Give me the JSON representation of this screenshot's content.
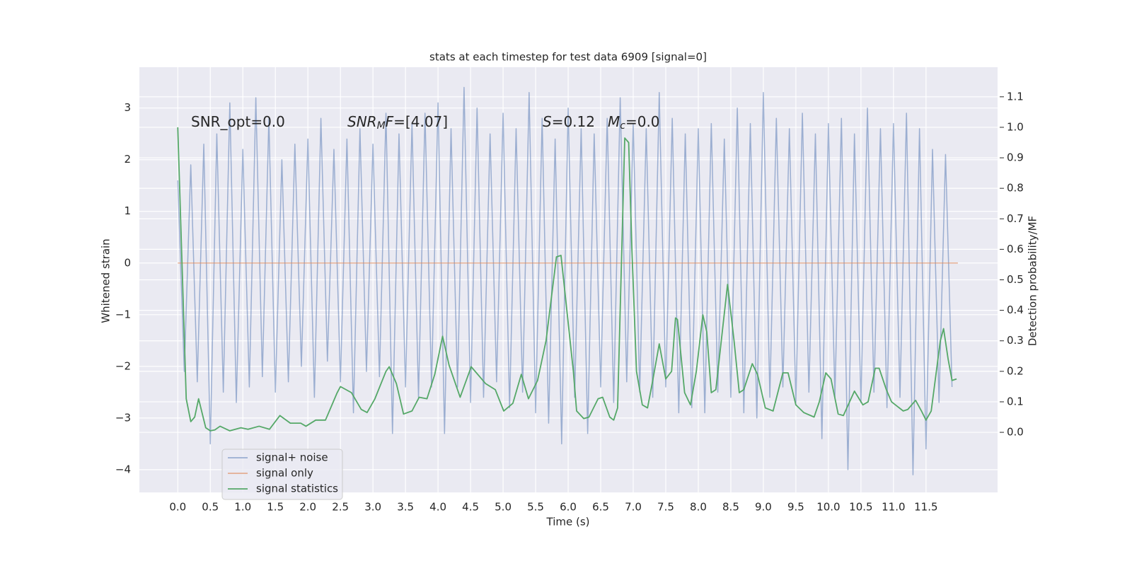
{
  "chart_data": {
    "type": "line",
    "title": "stats at each timestep for test data 6909 [signal=0]",
    "x_label": "Time (s)",
    "y_label": "Whitened strain",
    "y2_label": "Detection probability/MF",
    "annotations": [
      [
        {
          "text": "SNR_opt=0.0"
        }
      ],
      [
        {
          "text": "SNR",
          "italic": true
        },
        {
          "text": "M",
          "italic": true,
          "sub": true
        },
        {
          "text": "F",
          "italic": true
        },
        {
          "text": "=[4.07]"
        }
      ],
      [
        {
          "text": "S",
          "italic": true
        },
        {
          "text": "=0.12"
        }
      ],
      [
        {
          "text": "M",
          "italic": true
        },
        {
          "text": "c",
          "italic": true,
          "sub": true
        },
        {
          "text": "=0.0"
        }
      ]
    ],
    "xlim": [
      -0.59,
      12.6
    ],
    "ylim": [
      -4.44,
      3.79
    ],
    "y2lim": [
      -0.197,
      1.197
    ],
    "xticks": [
      {
        "value": 0,
        "label": "0.0"
      },
      {
        "value": 0.5,
        "label": "0.5"
      },
      {
        "value": 1,
        "label": "1.0"
      },
      {
        "value": 1.5,
        "label": "1.5"
      },
      {
        "value": 2,
        "label": "2.0"
      },
      {
        "value": 2.5,
        "label": "2.5"
      },
      {
        "value": 3,
        "label": "3.0"
      },
      {
        "value": 3.5,
        "label": "3.5"
      },
      {
        "value": 4,
        "label": "4.0"
      },
      {
        "value": 4.5,
        "label": "4.5"
      },
      {
        "value": 5,
        "label": "5.0"
      },
      {
        "value": 5.5,
        "label": "5.5"
      },
      {
        "value": 6,
        "label": "6.0"
      },
      {
        "value": 6.5,
        "label": "6.5"
      },
      {
        "value": 7,
        "label": "7.0"
      },
      {
        "value": 7.5,
        "label": "7.5"
      },
      {
        "value": 8,
        "label": "8.0"
      },
      {
        "value": 8.5,
        "label": "8.5"
      },
      {
        "value": 9,
        "label": "9.0"
      },
      {
        "value": 9.5,
        "label": "9.5"
      },
      {
        "value": 10,
        "label": "10.0"
      },
      {
        "value": 10.5,
        "label": "10.5"
      },
      {
        "value": 11,
        "label": "11.0"
      },
      {
        "value": 11.5,
        "label": "11.5"
      }
    ],
    "yticks": [
      {
        "value": -4,
        "label": "−4"
      },
      {
        "value": -3,
        "label": "−3"
      },
      {
        "value": -2,
        "label": "−2"
      },
      {
        "value": -1,
        "label": "−1"
      },
      0,
      1,
      2,
      3
    ],
    "y2ticks": [
      {
        "value": 0,
        "label": "0.0"
      },
      {
        "value": 0.1,
        "label": "0.1"
      },
      {
        "value": 0.2,
        "label": "0.2"
      },
      {
        "value": 0.3,
        "label": "0.3"
      },
      {
        "value": 0.4,
        "label": "0.4"
      },
      {
        "value": 0.5,
        "label": "0.5"
      },
      {
        "value": 0.6,
        "label": "0.6"
      },
      {
        "value": 0.7,
        "label": "0.7"
      },
      {
        "value": 0.8,
        "label": "0.8"
      },
      {
        "value": 0.9,
        "label": "0.9"
      },
      {
        "value": 1,
        "label": "1.0"
      },
      {
        "value": 1.1,
        "label": "1.1"
      }
    ],
    "grid": true,
    "legend": "lower left",
    "background": "#eaeaf2",
    "series": [
      {
        "name": "signal+ noise",
        "color": "#4c72b0",
        "opacity": 0.5,
        "x": [
          0,
          0.1,
          0.2,
          0.3,
          0.4,
          0.5,
          0.6,
          0.7,
          0.8,
          0.9,
          1,
          1.1,
          1.2,
          1.3,
          1.4,
          1.5,
          1.6,
          1.7,
          1.8,
          1.9,
          2,
          2.1,
          2.2,
          2.3,
          2.4,
          2.5,
          2.6,
          2.7,
          2.8,
          2.9,
          3,
          3.1,
          3.2,
          3.3,
          3.4,
          3.5,
          3.6,
          3.7,
          3.8,
          3.9,
          4,
          4.1,
          4.2,
          4.3,
          4.4,
          4.5,
          4.6,
          4.7,
          4.8,
          4.9,
          5,
          5.1,
          5.2,
          5.3,
          5.4,
          5.5,
          5.6,
          5.7,
          5.8,
          5.9,
          6,
          6.1,
          6.2,
          6.3,
          6.4,
          6.5,
          6.6,
          6.7,
          6.8,
          6.9,
          7,
          7.1,
          7.2,
          7.3,
          7.4,
          7.5,
          7.6,
          7.7,
          7.8,
          7.9,
          8,
          8.1,
          8.2,
          8.3,
          8.4,
          8.5,
          8.6,
          8.7,
          8.8,
          8.9,
          9,
          9.1,
          9.2,
          9.3,
          9.4,
          9.5,
          9.6,
          9.7,
          9.8,
          9.9,
          10,
          10.1,
          10.2,
          10.3,
          10.4,
          10.5,
          10.6,
          10.7,
          10.8,
          10.9,
          11,
          11.1,
          11.2,
          11.3,
          11.4,
          11.5,
          11.6,
          11.7,
          11.8,
          11.9
        ],
        "values": [
          1.6,
          -2.1,
          1.9,
          -2.3,
          2.3,
          -3.5,
          2.5,
          -2.5,
          3.1,
          -2.7,
          2.2,
          -2.4,
          3.2,
          -2.2,
          2.8,
          -2.5,
          2.0,
          -2.3,
          2.3,
          -2.0,
          2.4,
          -2.6,
          2.8,
          -1.9,
          2.2,
          -2.3,
          2.4,
          -2.9,
          2.6,
          -2.1,
          2.3,
          -2.2,
          2.9,
          -3.3,
          2.5,
          -2.4,
          2.7,
          -2.6,
          2.9,
          -2.4,
          3.1,
          -3.3,
          2.6,
          -2.4,
          3.4,
          -2.7,
          3.0,
          -2.6,
          2.5,
          -2.3,
          2.9,
          -2.8,
          2.6,
          -2.5,
          3.3,
          -2.9,
          2.8,
          -3.1,
          2.4,
          -3.5,
          3.0,
          -2.6,
          2.6,
          -3.3,
          2.5,
          -2.4,
          2.8,
          -2.7,
          3.2,
          -2.3,
          2.7,
          -2.5,
          2.6,
          -2.6,
          3.3,
          -2.4,
          2.8,
          -2.9,
          2.5,
          -2.8,
          2.6,
          -2.9,
          2.7,
          -2.5,
          2.4,
          -2.6,
          3.0,
          -2.9,
          2.7,
          -3.0,
          3.3,
          -2.6,
          2.8,
          -2.4,
          2.6,
          -2.7,
          2.9,
          -2.5,
          2.5,
          -3.4,
          2.7,
          -2.6,
          2.8,
          -4.0,
          2.5,
          -2.7,
          3.0,
          -2.5,
          2.6,
          -2.8,
          2.7,
          -2.6,
          2.9,
          -4.1,
          2.6,
          -3.6,
          2.2,
          -2.7,
          2.1,
          -2.4
        ]
      },
      {
        "name": "signal only",
        "color": "#dd8452",
        "opacity": 0.6,
        "x": [
          0,
          11.99
        ],
        "values": [
          0,
          0
        ]
      },
      {
        "name": "signal statistics",
        "color": "#55a868",
        "opacity": 1,
        "axis": "y2",
        "x": [
          0,
          0.13,
          0.2,
          0.26,
          0.32,
          0.43,
          0.5,
          0.57,
          0.65,
          0.8,
          0.97,
          1.08,
          1.25,
          1.41,
          1.57,
          1.73,
          1.89,
          1.97,
          2.12,
          2.27,
          2.45,
          2.5,
          2.67,
          2.82,
          2.91,
          3.03,
          3.2,
          3.25,
          3.36,
          3.47,
          3.6,
          3.71,
          3.83,
          3.95,
          4.07,
          4.17,
          4.34,
          4.51,
          4.73,
          4.88,
          5.01,
          5.15,
          5.28,
          5.39,
          5.53,
          5.66,
          5.82,
          5.89,
          5.98,
          6.08,
          6.13,
          6.24,
          6.32,
          6.46,
          6.53,
          6.64,
          6.7,
          6.76,
          6.87,
          6.93,
          6.98,
          7.05,
          7.14,
          7.22,
          7.3,
          7.4,
          7.5,
          7.59,
          7.65,
          7.68,
          7.79,
          7.88,
          7.97,
          8.07,
          8.13,
          8.2,
          8.27,
          8.45,
          8.55,
          8.63,
          8.7,
          8.83,
          8.91,
          9.03,
          9.15,
          9.3,
          9.38,
          9.5,
          9.62,
          9.78,
          9.86,
          9.96,
          10.04,
          10.15,
          10.23,
          10.4,
          10.53,
          10.61,
          10.72,
          10.78,
          10.89,
          10.97,
          11.15,
          11.22,
          11.34,
          11.43,
          11.5,
          11.58,
          11.72,
          11.77,
          11.84,
          11.9,
          11.97
        ],
        "values": [
          1.0,
          0.11,
          0.035,
          0.05,
          0.11,
          0.015,
          0.005,
          0.008,
          0.02,
          0.005,
          0.015,
          0.01,
          0.02,
          0.01,
          0.055,
          0.03,
          0.03,
          0.02,
          0.04,
          0.04,
          0.13,
          0.15,
          0.13,
          0.075,
          0.065,
          0.11,
          0.2,
          0.215,
          0.16,
          0.06,
          0.07,
          0.115,
          0.11,
          0.19,
          0.315,
          0.22,
          0.115,
          0.215,
          0.16,
          0.14,
          0.07,
          0.095,
          0.19,
          0.11,
          0.17,
          0.3,
          0.575,
          0.58,
          0.4,
          0.2,
          0.07,
          0.045,
          0.05,
          0.11,
          0.115,
          0.05,
          0.04,
          0.08,
          0.965,
          0.95,
          0.6,
          0.2,
          0.09,
          0.08,
          0.17,
          0.29,
          0.175,
          0.2,
          0.375,
          0.37,
          0.13,
          0.09,
          0.2,
          0.385,
          0.33,
          0.13,
          0.14,
          0.485,
          0.3,
          0.13,
          0.14,
          0.225,
          0.19,
          0.08,
          0.07,
          0.195,
          0.195,
          0.09,
          0.065,
          0.05,
          0.1,
          0.195,
          0.175,
          0.06,
          0.055,
          0.135,
          0.09,
          0.1,
          0.21,
          0.21,
          0.14,
          0.1,
          0.07,
          0.075,
          0.105,
          0.07,
          0.04,
          0.07,
          0.3,
          0.34,
          0.24,
          0.17,
          0.175
        ]
      }
    ]
  }
}
